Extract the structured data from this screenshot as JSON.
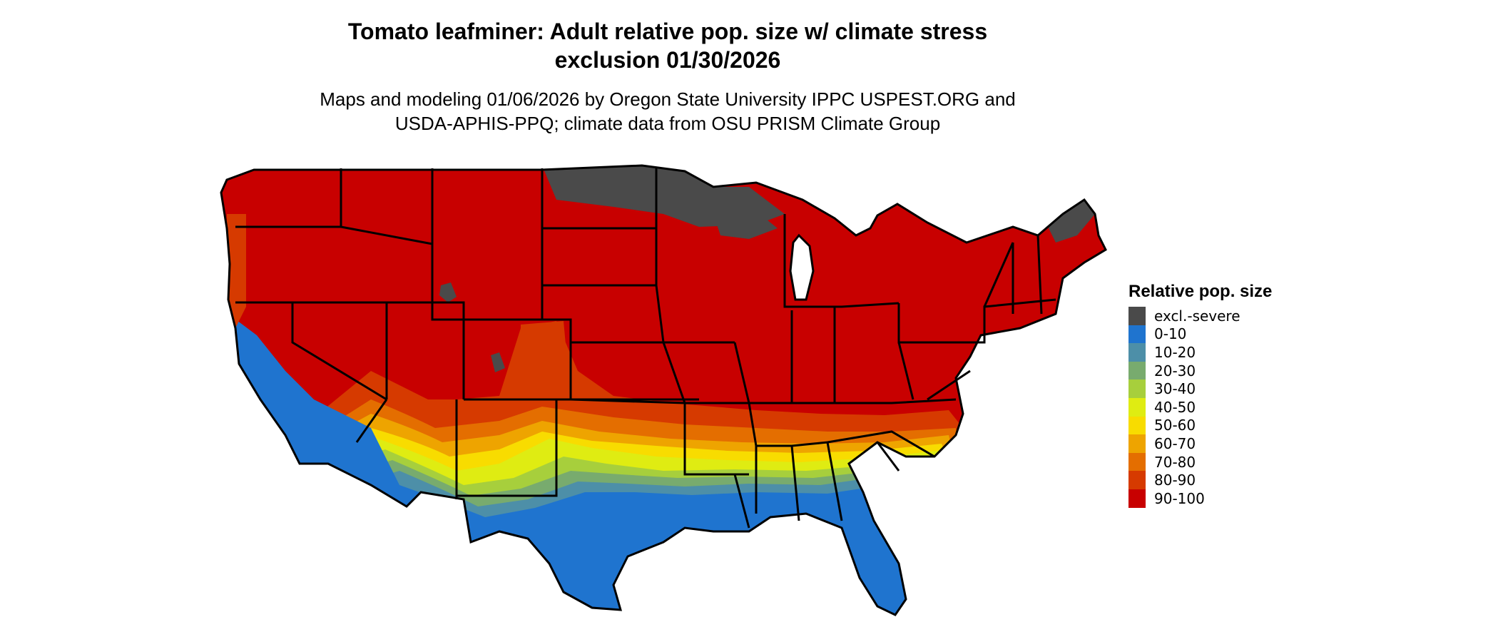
{
  "title_line1": "Tomato leafminer: Adult relative pop. size w/ climate stress",
  "title_line2": "exclusion 01/30/2026",
  "subtitle_line1": "Maps and modeling 01/06/2026 by Oregon State University IPPC USPEST.ORG and",
  "subtitle_line2": "USDA-APHIS-PPQ; climate data from OSU PRISM Climate Group",
  "legend": {
    "title": "Relative pop. size",
    "items": [
      {
        "label": "excl.-severe",
        "color": "#4a4a4a"
      },
      {
        "label": "0-10",
        "color": "#1f74cf"
      },
      {
        "label": "10-20",
        "color": "#4d8fa8"
      },
      {
        "label": "20-30",
        "color": "#78ab6e"
      },
      {
        "label": "30-40",
        "color": "#a7cf3c"
      },
      {
        "label": "40-50",
        "color": "#dfec12"
      },
      {
        "label": "50-60",
        "color": "#f8dc00"
      },
      {
        "label": "60-70",
        "color": "#eea400"
      },
      {
        "label": "70-80",
        "color": "#e46e00"
      },
      {
        "label": "80-90",
        "color": "#d63a00"
      },
      {
        "label": "90-100",
        "color": "#c80000"
      }
    ]
  }
}
